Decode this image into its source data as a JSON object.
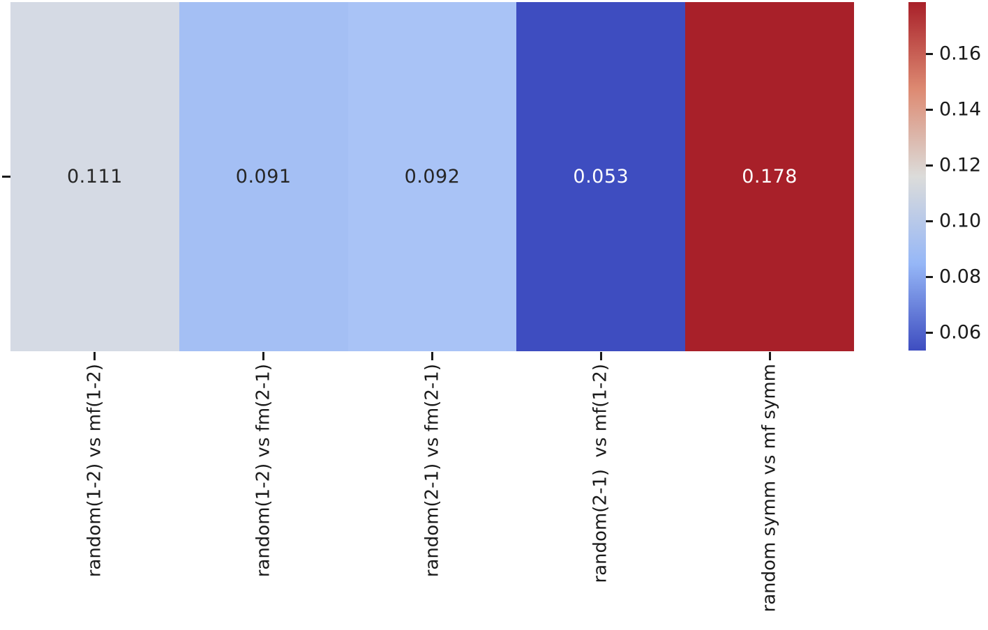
{
  "figure": {
    "background": "#ffffff",
    "title": ""
  },
  "chart_data": {
    "type": "heatmap",
    "title": "",
    "rows": 1,
    "y_tick_labels": [
      ""
    ],
    "categories": [
      "random(1-2) vs mf(1-2)",
      "random(1-2) vs fm(2-1)",
      "random(2-1) vs fm(2-1)",
      "random(2-1)  vs mf(1-2)",
      "random symm vs mf symm"
    ],
    "values": [
      0.111,
      0.091,
      0.092,
      0.053,
      0.178
    ],
    "annotations": [
      "0.111",
      "0.091",
      "0.092",
      "0.053",
      "0.178"
    ],
    "colormap": "coolwarm",
    "cell_colors": [
      "#d5dae4",
      "#a4bff4",
      "#a9c3f6",
      "#3e4dc0",
      "#a82029"
    ],
    "cell_text_colors": [
      "#262626",
      "#262626",
      "#262626",
      "#ffffff",
      "#ffffff"
    ],
    "grid": false,
    "colorbar": {
      "position": "right",
      "vmin": 0.053,
      "vmax": 0.178,
      "tick_labels": [
        "0.16",
        "0.14",
        "0.12",
        "0.10",
        "0.08",
        "0.06"
      ],
      "tick_values": [
        0.16,
        0.14,
        0.12,
        0.1,
        0.08,
        0.06
      ],
      "gradient_top_to_bottom": [
        "#a82029",
        "#dd8a72",
        "#dcdcda",
        "#96b7f7",
        "#3e4dc0"
      ]
    }
  }
}
